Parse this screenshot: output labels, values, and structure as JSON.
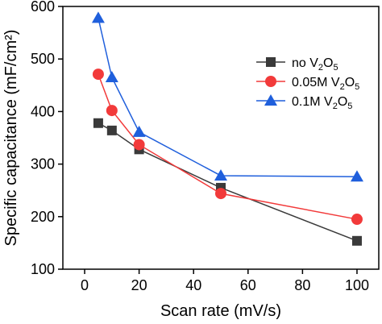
{
  "chart_data": {
    "type": "line",
    "title": "",
    "xlabel": "Scan rate (mV/s)",
    "ylabel": "Specific capacitance (mF/cm²)",
    "xlim": [
      -8,
      108
    ],
    "ylim": [
      100,
      600
    ],
    "xticks": [
      0,
      20,
      40,
      60,
      80,
      100
    ],
    "yticks": [
      100,
      200,
      300,
      400,
      500,
      600
    ],
    "grid": false,
    "legend_position": "top-right",
    "series": [
      {
        "name": "no V2O5",
        "label_parts": [
          "no V",
          "2",
          "O",
          "5"
        ],
        "color": "#3a3a3a",
        "marker": "square",
        "x": [
          5,
          10,
          20,
          50,
          100
        ],
        "y": [
          378,
          364,
          328,
          255,
          154
        ]
      },
      {
        "name": "0.05M V2O5",
        "label_parts": [
          "0.05M V",
          "2",
          "O",
          "5"
        ],
        "color": "#f23a3a",
        "marker": "circle",
        "x": [
          5,
          10,
          20,
          50,
          100
        ],
        "y": [
          471,
          402,
          337,
          244,
          195
        ]
      },
      {
        "name": "0.1M V2O5",
        "label_parts": [
          "0.1M V",
          "2",
          "O",
          "5"
        ],
        "color": "#1f5fdc",
        "marker": "triangle",
        "x": [
          5,
          10,
          20,
          50,
          100
        ],
        "y": [
          578,
          465,
          361,
          278,
          276
        ]
      }
    ]
  }
}
